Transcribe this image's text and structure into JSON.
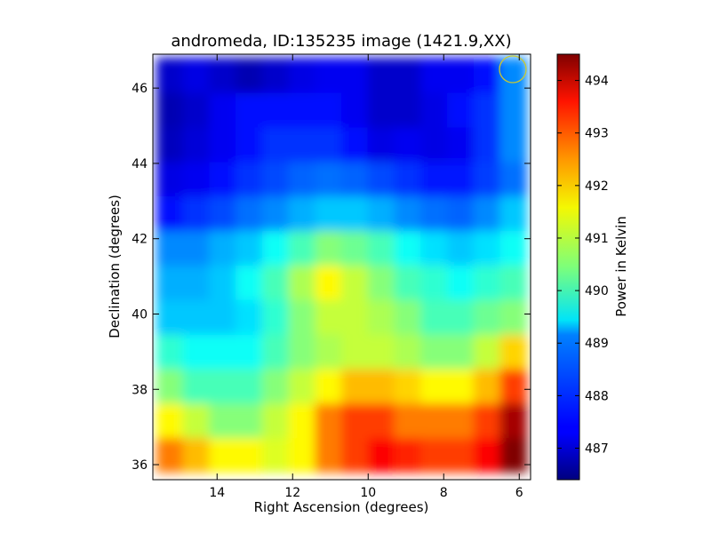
{
  "chart_data": {
    "type": "heatmap",
    "title": "andromeda, ID:135235 image (1421.9,XX)",
    "xlabel": "Right Ascension (degrees)",
    "ylabel": "Declination (degrees)",
    "xlim": [
      15.7,
      5.7
    ],
    "ylim": [
      35.6,
      46.9
    ],
    "xticks": [
      14,
      12,
      10,
      8,
      6
    ],
    "yticks": [
      36,
      38,
      40,
      42,
      44,
      46
    ],
    "xtick_labels": [
      "14",
      "12",
      "10",
      "8",
      "6"
    ],
    "ytick_labels": [
      "36",
      "38",
      "40",
      "42",
      "44",
      "46"
    ],
    "colorbar": {
      "label": "Power in Kelvin",
      "range": [
        486.4,
        494.5
      ],
      "ticks": [
        487,
        488,
        489,
        490,
        491,
        492,
        493,
        494
      ],
      "tick_labels": [
        "487",
        "488",
        "489",
        "490",
        "491",
        "492",
        "493",
        "494"
      ],
      "colormap": "jet"
    },
    "grid": false,
    "values_kelvin": [
      [
        492.5,
        492.0,
        491.5,
        491.5,
        491.2,
        491.5,
        492.5,
        493.0,
        493.5,
        493.2,
        493.0,
        493.0,
        493.5,
        494.5
      ],
      [
        491.5,
        491.0,
        490.5,
        490.5,
        491.0,
        491.5,
        492.5,
        493.0,
        493.0,
        492.5,
        492.5,
        492.5,
        493.0,
        494.2
      ],
      [
        490.5,
        490.0,
        490.0,
        490.0,
        490.5,
        491.0,
        491.5,
        492.0,
        492.0,
        491.8,
        491.5,
        491.5,
        492.0,
        493.0
      ],
      [
        489.8,
        489.5,
        489.5,
        489.5,
        490.0,
        490.5,
        490.8,
        491.0,
        491.0,
        490.8,
        490.5,
        490.5,
        491.0,
        491.8
      ],
      [
        489.0,
        489.0,
        489.0,
        489.2,
        489.8,
        490.5,
        491.0,
        491.0,
        490.8,
        490.5,
        490.0,
        490.0,
        490.3,
        490.5
      ],
      [
        488.8,
        488.8,
        489.0,
        489.5,
        490.0,
        490.8,
        491.5,
        491.0,
        490.5,
        490.0,
        489.8,
        489.5,
        489.8,
        490.0
      ],
      [
        488.5,
        488.5,
        488.8,
        489.0,
        489.5,
        490.0,
        490.5,
        490.3,
        490.0,
        489.5,
        489.2,
        489.0,
        489.2,
        489.5
      ],
      [
        487.5,
        487.8,
        488.0,
        488.3,
        488.5,
        488.8,
        489.0,
        489.0,
        488.8,
        488.5,
        488.3,
        488.2,
        488.5,
        489.0
      ],
      [
        487.2,
        487.3,
        487.5,
        487.8,
        488.0,
        488.2,
        488.3,
        488.2,
        488.0,
        487.8,
        487.6,
        487.6,
        487.9,
        488.3
      ],
      [
        486.9,
        487.1,
        487.3,
        487.5,
        487.8,
        487.8,
        487.8,
        487.5,
        487.2,
        487.3,
        487.2,
        487.3,
        487.8,
        488.5
      ],
      [
        486.8,
        487.0,
        487.3,
        487.5,
        487.5,
        487.5,
        487.5,
        487.3,
        487.0,
        487.0,
        487.2,
        487.5,
        487.8,
        488.5
      ],
      [
        487.0,
        487.2,
        487.0,
        486.8,
        487.0,
        487.2,
        487.3,
        487.3,
        487.0,
        487.0,
        487.3,
        487.3,
        487.5,
        488.5
      ]
    ]
  }
}
